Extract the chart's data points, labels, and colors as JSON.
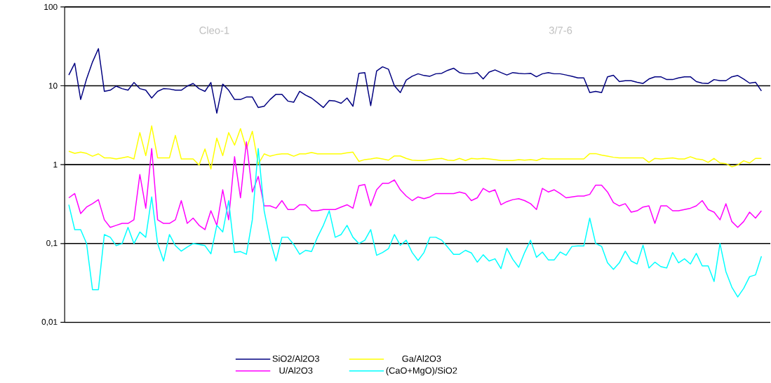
{
  "chart_data": {
    "type": "line",
    "log": "y",
    "grid": "y",
    "legend": "bottom",
    "annotations": [
      "Cleo-1",
      "3/7-6"
    ],
    "ylim": [
      0.01,
      100
    ],
    "yticks": [
      100,
      10,
      1,
      {
        "value": 0.1,
        "label": "0,1"
      },
      {
        "value": 0.01,
        "label": "0,01"
      }
    ],
    "categories": [
      null,
      null,
      null,
      null,
      null,
      null,
      null,
      null,
      null,
      null,
      null,
      null,
      null,
      null,
      null,
      null,
      null,
      null,
      null,
      null,
      null,
      null,
      null,
      null,
      null,
      null,
      null,
      null,
      null,
      null,
      null,
      null,
      null,
      null,
      null,
      null,
      null,
      null,
      null,
      null,
      null,
      null,
      null,
      null,
      null,
      null,
      null,
      null,
      null,
      null,
      null,
      null,
      null,
      null,
      null,
      null,
      null,
      null,
      null,
      null,
      null,
      null,
      null,
      null,
      null,
      null,
      null,
      null,
      null,
      null,
      null,
      null,
      null,
      null,
      null,
      null,
      null,
      null,
      null,
      null,
      null,
      null,
      null,
      null,
      null,
      null,
      null,
      null,
      null,
      null,
      null,
      null,
      null,
      null,
      null,
      null,
      null,
      null,
      null,
      null,
      null,
      null,
      null,
      null,
      null,
      null,
      null,
      null,
      null,
      null,
      null,
      null,
      null,
      null,
      null,
      null,
      null,
      null
    ],
    "series": [
      {
        "name": "SiO2/Al2O3",
        "color": "#000080",
        "values": [
          13.7,
          19.3,
          6.7,
          12.2,
          20,
          29.6,
          8.5,
          8.8,
          9.9,
          9.2,
          8.8,
          11,
          9.2,
          8.8,
          7.0,
          8.5,
          9.2,
          9.1,
          8.8,
          8.8,
          9.9,
          10.7,
          9.2,
          8.5,
          11,
          4.5,
          10.5,
          8.8,
          6.7,
          6.7,
          7.2,
          7.2,
          5.3,
          5.5,
          6.7,
          7.8,
          7.8,
          6.4,
          6.2,
          8.5,
          7.6,
          7.0,
          6.1,
          5.3,
          6.5,
          6.4,
          6.0,
          7.0,
          5.5,
          14.4,
          14.7,
          5.6,
          15.4,
          17.4,
          16.2,
          10,
          8.2,
          11.8,
          13.2,
          14.2,
          13.5,
          13.2,
          14.2,
          14.4,
          15.7,
          16.7,
          14.7,
          14.2,
          14.2,
          14.7,
          12.2,
          14.9,
          15.9,
          14.7,
          13.7,
          14.7,
          14.4,
          14.2,
          14.4,
          13.0,
          14.2,
          14.7,
          14.2,
          14.2,
          13.7,
          13.2,
          12.6,
          12.6,
          8.2,
          8.5,
          8.2,
          13.0,
          13.6,
          11.3,
          11.6,
          11.6,
          11.1,
          10.7,
          12.2,
          13.0,
          13.0,
          12.0,
          12.0,
          12.6,
          13.0,
          13.0,
          11.3,
          10.8,
          10.7,
          12.0,
          11.6,
          11.6,
          13.0,
          13.5,
          12.2,
          10.8,
          11.1,
          8.6
        ]
      },
      {
        "name": "Ga/Al2O3",
        "color": "#ffff00",
        "values": [
          1.48,
          1.39,
          1.44,
          1.39,
          1.28,
          1.37,
          1.22,
          1.22,
          1.18,
          1.22,
          1.26,
          1.18,
          2.55,
          1.3,
          3.1,
          1.22,
          1.22,
          1.22,
          2.35,
          1.18,
          1.18,
          1.18,
          0.99,
          1.58,
          0.88,
          2.17,
          1.3,
          2.55,
          1.77,
          2.86,
          1.58,
          2.65,
          1.01,
          1.37,
          1.28,
          1.34,
          1.37,
          1.37,
          1.28,
          1.37,
          1.37,
          1.43,
          1.37,
          1.37,
          1.37,
          1.37,
          1.37,
          1.41,
          1.44,
          1.1,
          1.16,
          1.18,
          1.22,
          1.18,
          1.14,
          1.29,
          1.29,
          1.2,
          1.14,
          1.13,
          1.13,
          1.16,
          1.18,
          1.2,
          1.14,
          1.13,
          1.2,
          1.13,
          1.2,
          1.18,
          1.2,
          1.18,
          1.16,
          1.13,
          1.13,
          1.13,
          1.16,
          1.14,
          1.16,
          1.13,
          1.2,
          1.18,
          1.18,
          1.18,
          1.18,
          1.18,
          1.18,
          1.18,
          1.38,
          1.38,
          1.32,
          1.28,
          1.24,
          1.22,
          1.22,
          1.22,
          1.22,
          1.22,
          1.07,
          1.2,
          1.18,
          1.2,
          1.22,
          1.18,
          1.18,
          1.26,
          1.18,
          1.16,
          1.07,
          1.2,
          1.05,
          1.03,
          0.94,
          0.99,
          1.12,
          1.05,
          1.2,
          1.2
        ]
      },
      {
        "name": "U/Al2O3",
        "color": "#ff00ff",
        "values": [
          0.38,
          0.43,
          0.24,
          0.29,
          0.32,
          0.36,
          0.2,
          0.16,
          0.17,
          0.18,
          0.18,
          0.2,
          0.75,
          0.28,
          1.6,
          0.2,
          0.18,
          0.18,
          0.2,
          0.35,
          0.18,
          0.21,
          0.17,
          0.15,
          0.26,
          0.17,
          0.48,
          0.2,
          1.26,
          0.38,
          1.95,
          0.45,
          0.71,
          0.3,
          0.3,
          0.28,
          0.35,
          0.27,
          0.27,
          0.31,
          0.31,
          0.26,
          0.26,
          0.27,
          0.27,
          0.27,
          0.29,
          0.31,
          0.28,
          0.54,
          0.56,
          0.3,
          0.48,
          0.58,
          0.58,
          0.64,
          0.48,
          0.4,
          0.35,
          0.39,
          0.37,
          0.39,
          0.43,
          0.43,
          0.43,
          0.43,
          0.45,
          0.43,
          0.35,
          0.38,
          0.5,
          0.45,
          0.48,
          0.31,
          0.34,
          0.36,
          0.37,
          0.35,
          0.32,
          0.27,
          0.5,
          0.45,
          0.48,
          0.43,
          0.38,
          0.39,
          0.4,
          0.4,
          0.42,
          0.55,
          0.55,
          0.45,
          0.33,
          0.3,
          0.32,
          0.25,
          0.26,
          0.29,
          0.3,
          0.18,
          0.3,
          0.3,
          0.26,
          0.26,
          0.27,
          0.28,
          0.3,
          0.35,
          0.27,
          0.25,
          0.2,
          0.32,
          0.19,
          0.16,
          0.19,
          0.25,
          0.21,
          0.26
        ]
      },
      {
        "name": "(CaO+MgO)/SiO2",
        "color": "#00ffff",
        "values": [
          0.31,
          0.15,
          0.15,
          0.1,
          0.026,
          0.026,
          0.13,
          0.12,
          0.094,
          0.1,
          0.16,
          0.1,
          0.14,
          0.12,
          0.39,
          0.1,
          0.06,
          0.13,
          0.094,
          0.08,
          0.09,
          0.1,
          0.097,
          0.094,
          0.074,
          0.17,
          0.14,
          0.35,
          0.077,
          0.079,
          0.073,
          0.2,
          1.6,
          0.26,
          0.11,
          0.06,
          0.12,
          0.12,
          0.097,
          0.073,
          0.082,
          0.079,
          0.12,
          0.17,
          0.26,
          0.12,
          0.13,
          0.17,
          0.12,
          0.1,
          0.11,
          0.15,
          0.071,
          0.077,
          0.086,
          0.13,
          0.095,
          0.11,
          0.077,
          0.061,
          0.077,
          0.12,
          0.12,
          0.11,
          0.09,
          0.073,
          0.073,
          0.082,
          0.076,
          0.058,
          0.072,
          0.06,
          0.064,
          0.048,
          0.087,
          0.063,
          0.05,
          0.077,
          0.11,
          0.067,
          0.078,
          0.062,
          0.062,
          0.078,
          0.071,
          0.092,
          0.093,
          0.093,
          0.21,
          0.1,
          0.092,
          0.057,
          0.047,
          0.057,
          0.08,
          0.06,
          0.055,
          0.095,
          0.049,
          0.058,
          0.051,
          0.049,
          0.077,
          0.057,
          0.064,
          0.055,
          0.075,
          0.052,
          0.052,
          0.033,
          0.1,
          0.044,
          0.028,
          0.021,
          0.027,
          0.038,
          0.04,
          0.069
        ]
      }
    ]
  }
}
